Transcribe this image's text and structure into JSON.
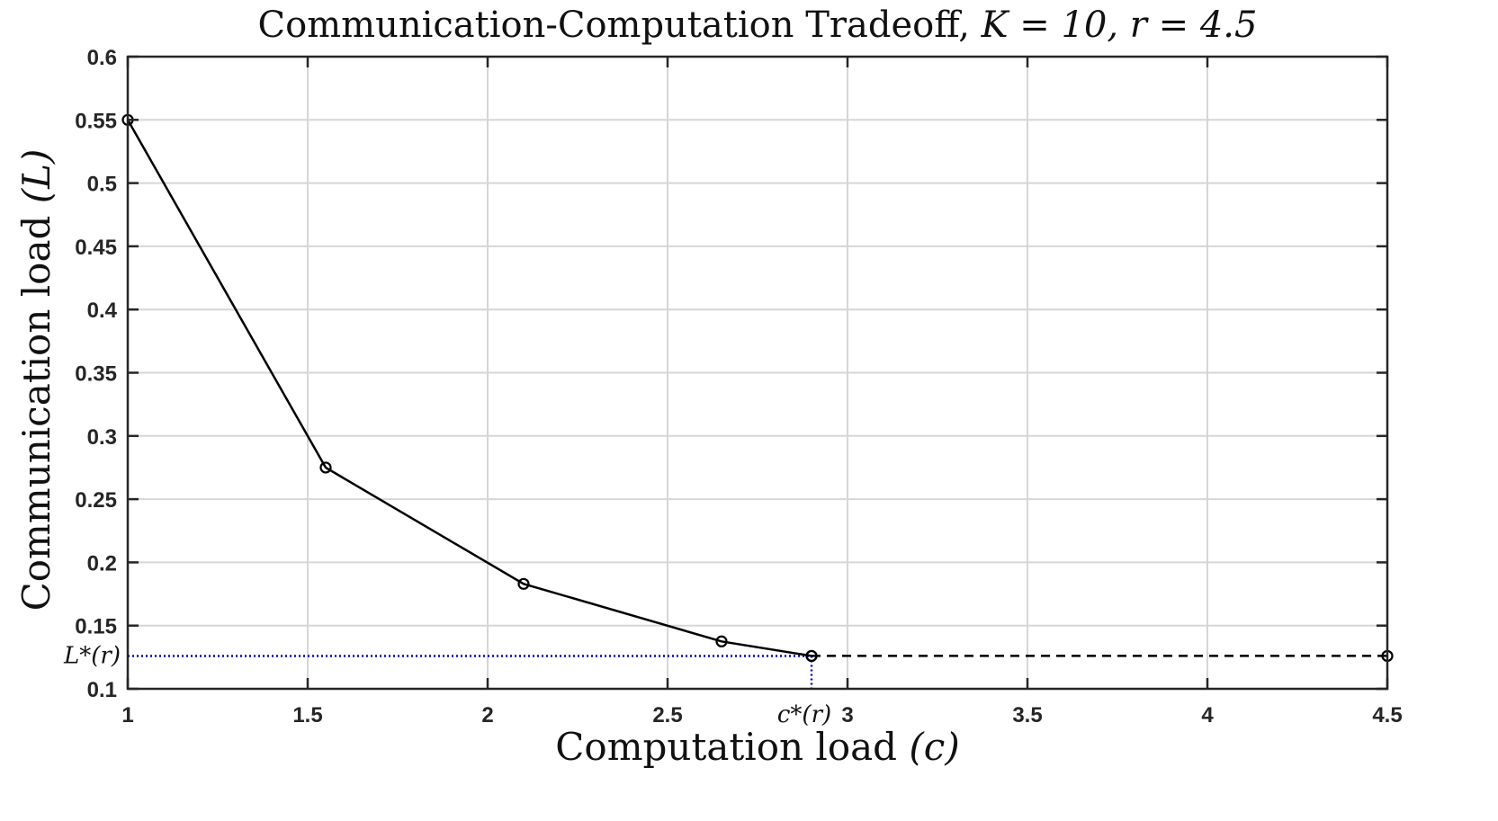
{
  "chart_data": {
    "type": "line",
    "title": {
      "prefix": "Communication-Computation Tradeoff,",
      "math": "K = 10, r = 4.5"
    },
    "xlabel": {
      "text": "Computation load",
      "symbol": "(c)"
    },
    "ylabel": {
      "text": "Communication load",
      "symbol": "(L)"
    },
    "xlim": [
      1,
      4.5
    ],
    "ylim": [
      0.1,
      0.6
    ],
    "x_ticks": [
      {
        "value": 1,
        "label": "1"
      },
      {
        "value": 1.5,
        "label": "1.5"
      },
      {
        "value": 2,
        "label": "2"
      },
      {
        "value": 2.5,
        "label": "2.5"
      },
      {
        "value": 3,
        "label": "3"
      },
      {
        "value": 3.5,
        "label": "3.5"
      },
      {
        "value": 4,
        "label": "4"
      },
      {
        "value": 4.5,
        "label": "4.5"
      }
    ],
    "y_ticks": [
      {
        "value": 0.1,
        "label": "0.1"
      },
      {
        "value": 0.15,
        "label": "0.15"
      },
      {
        "value": 0.2,
        "label": "0.2"
      },
      {
        "value": 0.25,
        "label": "0.25"
      },
      {
        "value": 0.3,
        "label": "0.3"
      },
      {
        "value": 0.35,
        "label": "0.35"
      },
      {
        "value": 0.4,
        "label": "0.4"
      },
      {
        "value": 0.45,
        "label": "0.45"
      },
      {
        "value": 0.5,
        "label": "0.5"
      },
      {
        "value": 0.55,
        "label": "0.55"
      },
      {
        "value": 0.6,
        "label": "0.6"
      }
    ],
    "grid": true,
    "series": [
      {
        "style": "solid",
        "color": "#000000",
        "marker": "circle",
        "x": [
          1.0,
          1.55,
          2.1,
          2.65,
          2.9
        ],
        "y": [
          0.55,
          0.275,
          0.183,
          0.1375,
          0.126
        ]
      },
      {
        "style": "dashed",
        "color": "#000000",
        "marker": "circle",
        "x": [
          2.9,
          4.5
        ],
        "y": [
          0.126,
          0.126
        ]
      }
    ],
    "annotations": {
      "color": "#0000cc",
      "c_star": {
        "value": 2.9,
        "label": "c*(r)"
      },
      "L_star": {
        "value": 0.126,
        "label": "L*(r)"
      }
    }
  }
}
